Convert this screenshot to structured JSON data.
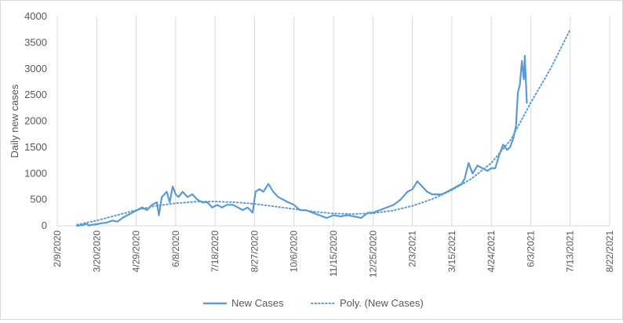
{
  "chart_data": {
    "type": "line",
    "ylabel": "Daily new cases",
    "xlabel": "",
    "title": "",
    "ylim": [
      0,
      4000
    ],
    "yticks": [
      0,
      500,
      1000,
      1500,
      2000,
      2500,
      3000,
      3500,
      4000
    ],
    "xlim": [
      "2020-02-09",
      "2021-08-22"
    ],
    "xtick_labels": [
      "2/9/2020",
      "3/20/2020",
      "4/29/2020",
      "6/8/2020",
      "7/18/2020",
      "8/27/2020",
      "10/6/2020",
      "11/15/2020",
      "12/25/2020",
      "2/3/2021",
      "3/15/2021",
      "4/24/2021",
      "6/3/2021",
      "7/13/2021",
      "8/22/2021"
    ],
    "grid": "vertical",
    "legend_position": "bottom",
    "series": [
      {
        "name": "New Cases",
        "style": "solid",
        "color": "#5b9bd5",
        "x": [
          "2020-02-29",
          "2020-03-05",
          "2020-03-10",
          "2020-03-12",
          "2020-03-15",
          "2020-03-20",
          "2020-03-25",
          "2020-03-30",
          "2020-04-05",
          "2020-04-10",
          "2020-04-15",
          "2020-04-20",
          "2020-04-25",
          "2020-04-30",
          "2020-05-05",
          "2020-05-10",
          "2020-05-15",
          "2020-05-20",
          "2020-05-22",
          "2020-05-25",
          "2020-05-30",
          "2020-06-02",
          "2020-06-05",
          "2020-06-08",
          "2020-06-11",
          "2020-06-15",
          "2020-06-20",
          "2020-06-25",
          "2020-06-30",
          "2020-07-05",
          "2020-07-10",
          "2020-07-15",
          "2020-07-20",
          "2020-07-25",
          "2020-07-30",
          "2020-08-05",
          "2020-08-10",
          "2020-08-15",
          "2020-08-20",
          "2020-08-25",
          "2020-08-28",
          "2020-09-01",
          "2020-09-05",
          "2020-09-10",
          "2020-09-15",
          "2020-09-20",
          "2020-09-25",
          "2020-09-30",
          "2020-10-06",
          "2020-10-12",
          "2020-10-18",
          "2020-10-25",
          "2020-11-01",
          "2020-11-08",
          "2020-11-15",
          "2020-11-22",
          "2020-11-29",
          "2020-12-06",
          "2020-12-13",
          "2020-12-20",
          "2020-12-25",
          "2021-01-01",
          "2021-01-08",
          "2021-01-15",
          "2021-01-22",
          "2021-01-29",
          "2021-02-03",
          "2021-02-08",
          "2021-02-13",
          "2021-02-18",
          "2021-02-23",
          "2021-02-28",
          "2021-03-05",
          "2021-03-10",
          "2021-03-15",
          "2021-03-20",
          "2021-03-25",
          "2021-03-28",
          "2021-04-01",
          "2021-04-05",
          "2021-04-10",
          "2021-04-15",
          "2021-04-20",
          "2021-04-24",
          "2021-04-28",
          "2021-05-02",
          "2021-05-06",
          "2021-05-10",
          "2021-05-13",
          "2021-05-16",
          "2021-05-19",
          "2021-05-21",
          "2021-05-23",
          "2021-05-25",
          "2021-05-27",
          "2021-05-28",
          "2021-05-30"
        ],
        "y": [
          0,
          10,
          40,
          5,
          20,
          30,
          50,
          60,
          100,
          80,
          150,
          200,
          250,
          300,
          350,
          300,
          400,
          450,
          200,
          550,
          650,
          450,
          750,
          600,
          550,
          650,
          550,
          600,
          500,
          450,
          450,
          350,
          400,
          350,
          400,
          400,
          350,
          300,
          350,
          250,
          650,
          700,
          650,
          800,
          650,
          550,
          500,
          450,
          400,
          300,
          300,
          250,
          200,
          150,
          200,
          180,
          200,
          180,
          150,
          250,
          250,
          300,
          350,
          400,
          500,
          650,
          700,
          850,
          750,
          650,
          600,
          600,
          600,
          650,
          700,
          750,
          800,
          900,
          1200,
          1000,
          1150,
          1100,
          1050,
          1100,
          1100,
          1350,
          1550,
          1450,
          1500,
          1650,
          1900,
          2550,
          2700,
          3150,
          2800,
          3250,
          2350
        ]
      },
      {
        "name": "Poly. (New Cases)",
        "style": "dotted",
        "color": "#5b9bd5",
        "x": [
          "2020-02-29",
          "2020-03-20",
          "2020-04-09",
          "2020-04-29",
          "2020-05-19",
          "2020-06-08",
          "2020-06-28",
          "2020-07-18",
          "2020-08-07",
          "2020-08-27",
          "2020-09-16",
          "2020-10-06",
          "2020-10-26",
          "2020-11-15",
          "2020-12-05",
          "2020-12-25",
          "2021-01-14",
          "2021-02-03",
          "2021-02-23",
          "2021-03-15",
          "2021-04-04",
          "2021-04-24",
          "2021-05-14",
          "2021-06-03",
          "2021-06-23",
          "2021-07-13"
        ],
        "y": [
          20,
          100,
          200,
          300,
          380,
          430,
          460,
          465,
          450,
          420,
          370,
          320,
          270,
          235,
          225,
          240,
          290,
          380,
          510,
          680,
          900,
          1200,
          1650,
          2350,
          3000,
          3750
        ]
      }
    ]
  }
}
